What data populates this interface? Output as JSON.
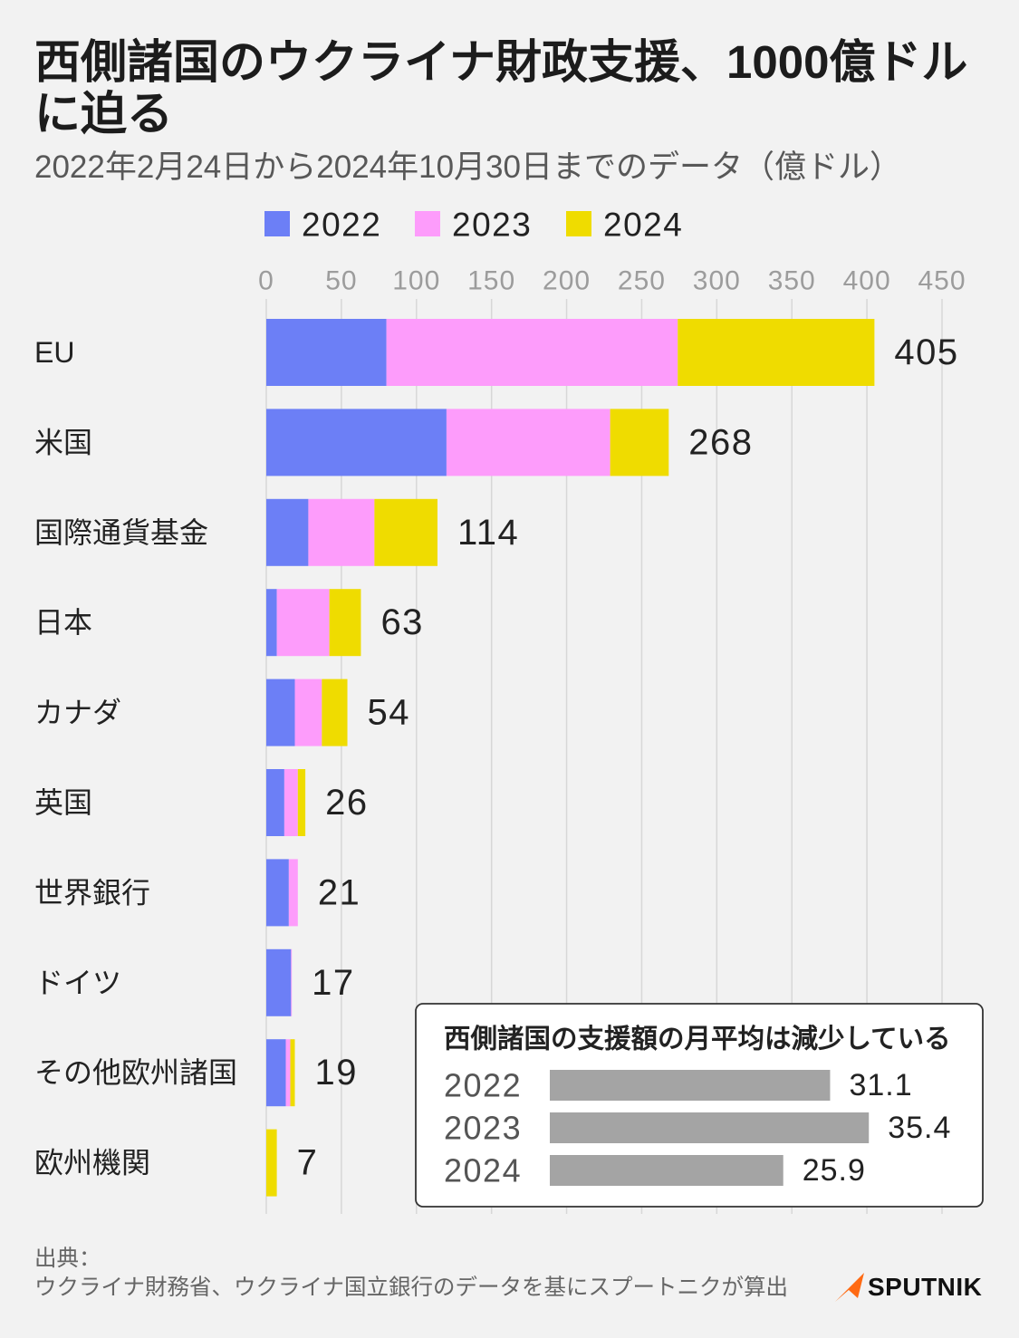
{
  "chart_data": [
    {
      "type": "bar",
      "orientation": "horizontal",
      "stacked": true,
      "title": "西側諸国のウクライナ財政支援、1000億ドルに迫る",
      "subtitle": "2022年2月24日から2024年10月30日までのデータ（億ドル）",
      "categories": [
        "EU",
        "米国",
        "国際通貨基金",
        "日本",
        "カナダ",
        "英国",
        "世界銀行",
        "ドイツ",
        "その他欧州諸国",
        "欧州機関"
      ],
      "series": [
        {
          "name": "2022",
          "color": "#6c7ff6",
          "values": [
            80,
            120,
            28,
            7,
            19,
            12,
            15,
            16.5,
            13,
            0
          ]
        },
        {
          "name": "2023",
          "color": "#fd9cfb",
          "values": [
            194,
            109,
            44,
            35,
            18,
            9,
            6,
            0.5,
            3,
            0
          ]
        },
        {
          "name": "2024",
          "color": "#efdc00",
          "values": [
            131,
            39,
            42,
            21,
            17,
            5,
            0,
            0,
            3,
            7
          ]
        }
      ],
      "totals": [
        405,
        268,
        114,
        63,
        54,
        26,
        21,
        17,
        19,
        7
      ],
      "xlim": [
        0,
        450
      ],
      "xticks": [
        0,
        50,
        100,
        150,
        200,
        250,
        300,
        350,
        400,
        450
      ],
      "grid": true,
      "legend": "top"
    },
    {
      "type": "bar",
      "orientation": "horizontal",
      "title": "西側諸国の支援額の月平均は減少している",
      "categories": [
        "2022",
        "2023",
        "2024"
      ],
      "values": [
        31.1,
        35.4,
        25.9
      ],
      "color": "#a4a4a4",
      "grid": false
    }
  ],
  "source": {
    "label": "出典：",
    "text": "ウクライナ財務省、ウクライナ国立銀行のデータを基にスプートニクが算出"
  },
  "logo": {
    "text": "SPUTNIK",
    "icon": "sputnik-logo-icon",
    "color": "#ff6a13"
  },
  "colors": {
    "background": "#f2f2f2",
    "panel": "#ffffff"
  }
}
